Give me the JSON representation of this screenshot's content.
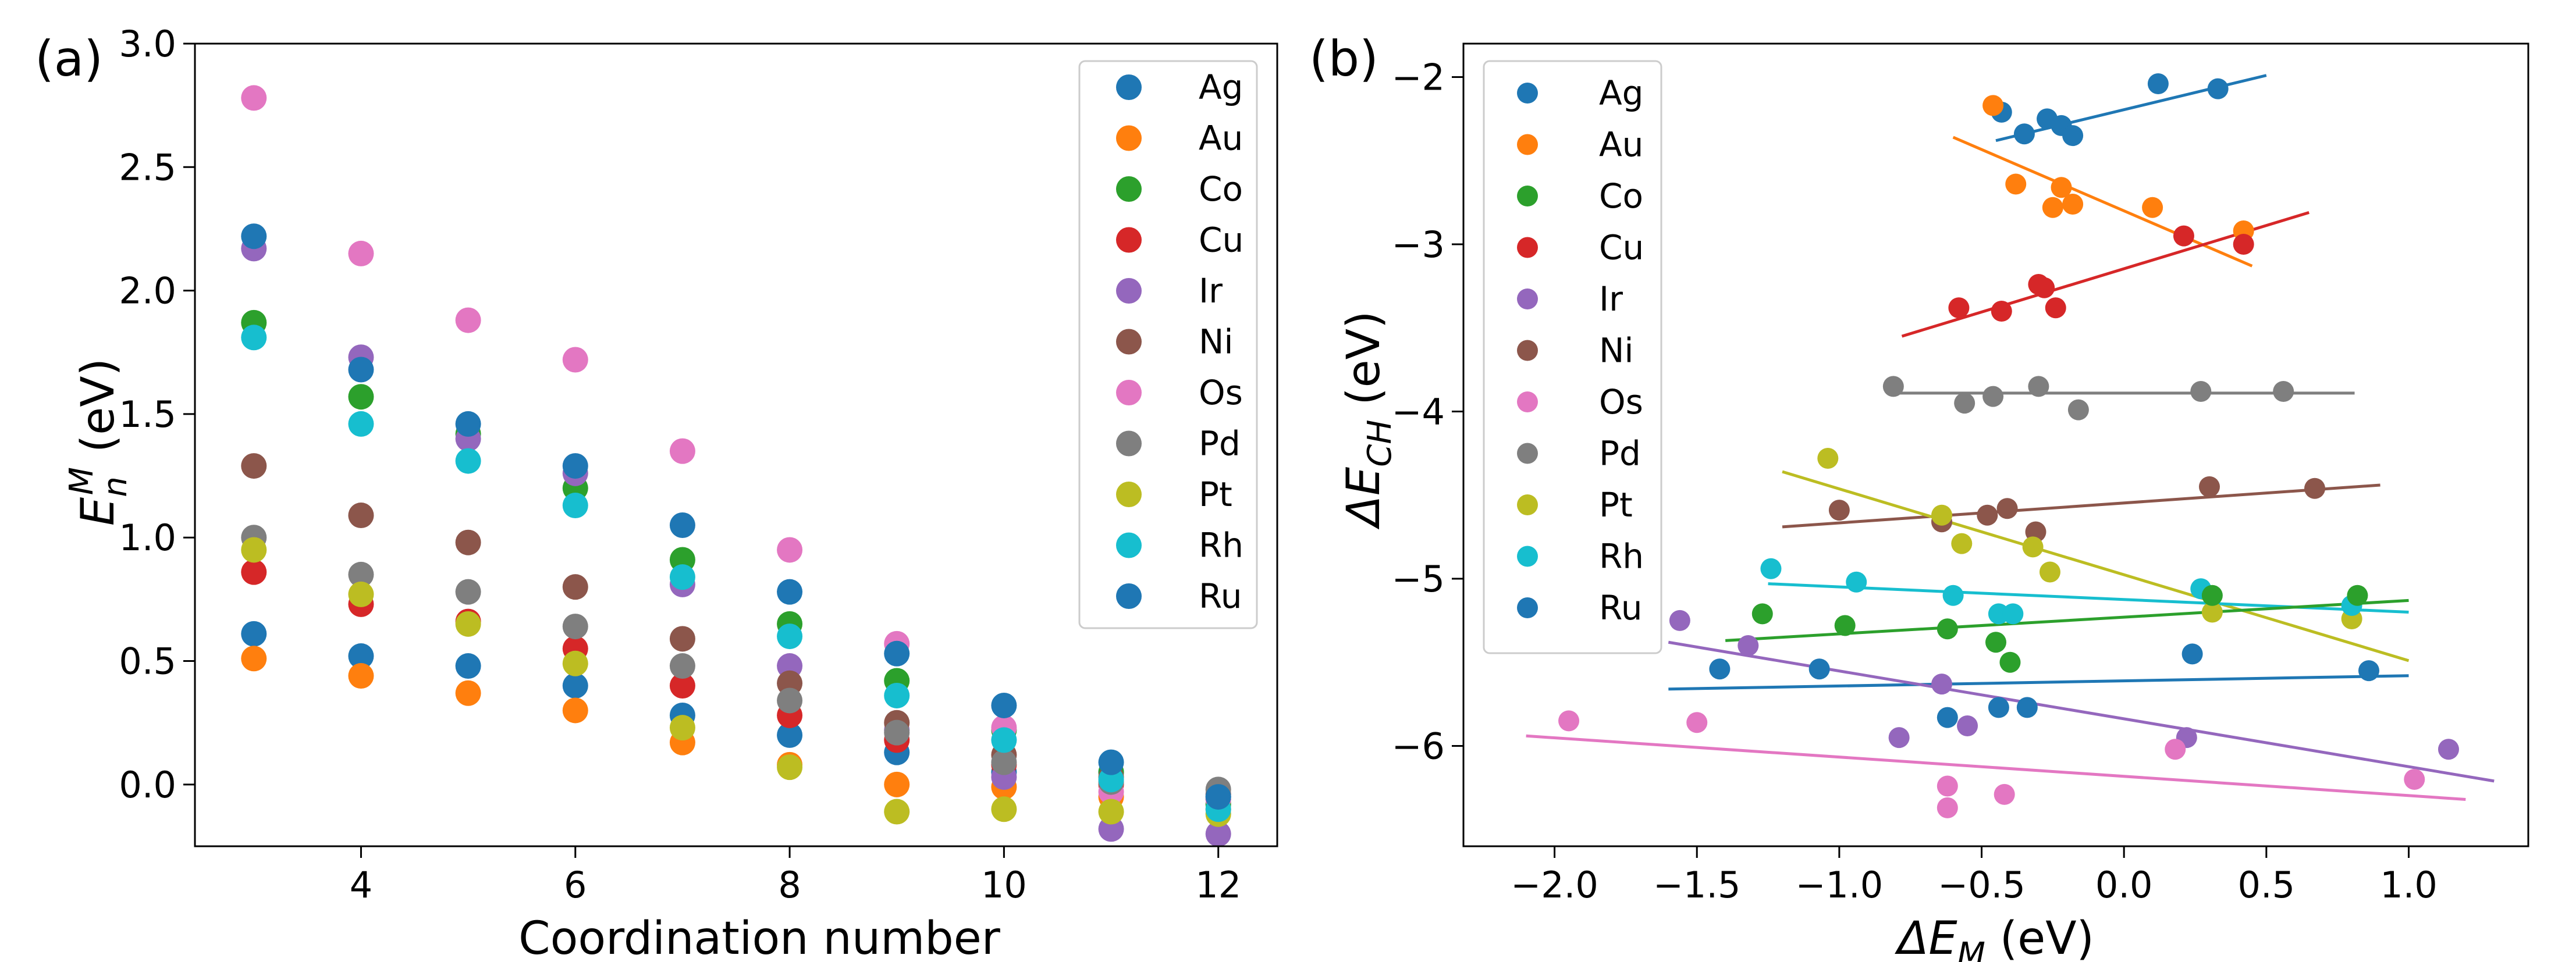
{
  "figure": {
    "colors": {
      "Ag": "#1f77b4",
      "Au": "#ff7f0e",
      "Co": "#2ca02c",
      "Cu": "#d62728",
      "Ir": "#9467bd",
      "Ni": "#8c564b",
      "Os": "#e377c2",
      "Pd": "#7f7f7f",
      "Pt": "#bcbd22",
      "Rh": "#17becf",
      "Ru": "#1f77b4"
    }
  },
  "chart_data": [
    {
      "type": "scatter",
      "panel_label": "(a)",
      "xlabel": "Coordination number",
      "ylabel_main": "E",
      "ylabel_sub": "n",
      "ylabel_sup": "M",
      "ylabel_unit": " (eV)",
      "xlim": [
        2.45,
        12.55
      ],
      "ylim": [
        -0.25,
        3.0
      ],
      "xticks": [
        4,
        6,
        8,
        10,
        12
      ],
      "xtick_labels": [
        "4",
        "6",
        "8",
        "10",
        "12"
      ],
      "yticks": [
        0.0,
        0.5,
        1.0,
        1.5,
        2.0,
        2.5,
        3.0
      ],
      "ytick_labels": [
        "0.0",
        "0.5",
        "1.0",
        "1.5",
        "2.0",
        "2.5",
        "3.0"
      ],
      "legend_position": "top-right",
      "series": [
        {
          "name": "Ag",
          "x": [
            3,
            4,
            5,
            6,
            7,
            8,
            9,
            10,
            11,
            12
          ],
          "y": [
            0.61,
            0.52,
            0.48,
            0.4,
            0.28,
            0.2,
            0.13,
            0.05,
            0.05,
            -0.05
          ]
        },
        {
          "name": "Au",
          "x": [
            3,
            4,
            5,
            6,
            7,
            8,
            9,
            10,
            11,
            12
          ],
          "y": [
            0.51,
            0.44,
            0.37,
            0.3,
            0.17,
            0.08,
            0.0,
            -0.01,
            -0.05,
            -0.1
          ]
        },
        {
          "name": "Co",
          "x": [
            3,
            4,
            5,
            6,
            7,
            8,
            9,
            10,
            11,
            12
          ],
          "y": [
            1.87,
            1.57,
            1.42,
            1.2,
            0.91,
            0.65,
            0.42,
            0.22,
            0.05,
            -0.08
          ]
        },
        {
          "name": "Cu",
          "x": [
            3,
            4,
            5,
            6,
            7,
            8,
            9,
            10,
            11,
            12
          ],
          "y": [
            0.86,
            0.73,
            0.66,
            0.55,
            0.4,
            0.28,
            0.18,
            0.08,
            0.0,
            -0.06
          ]
        },
        {
          "name": "Ir",
          "x": [
            3,
            4,
            5,
            6,
            7,
            8,
            9,
            10,
            11,
            12
          ],
          "y": [
            2.17,
            1.73,
            1.4,
            1.26,
            0.81,
            0.48,
            0.22,
            0.03,
            -0.18,
            -0.2
          ]
        },
        {
          "name": "Ni",
          "x": [
            3,
            4,
            5,
            6,
            7,
            8,
            9,
            10,
            11,
            12
          ],
          "y": [
            1.29,
            1.09,
            0.98,
            0.8,
            0.59,
            0.41,
            0.25,
            0.12,
            0.03,
            -0.04
          ]
        },
        {
          "name": "Os",
          "x": [
            3,
            4,
            5,
            6,
            7,
            8,
            9,
            10,
            11,
            12
          ],
          "y": [
            2.78,
            2.15,
            1.88,
            1.72,
            1.35,
            0.95,
            0.57,
            0.23,
            -0.03,
            -0.06
          ]
        },
        {
          "name": "Pd",
          "x": [
            3,
            4,
            5,
            6,
            7,
            8,
            9,
            10,
            11,
            12
          ],
          "y": [
            1.0,
            0.85,
            0.78,
            0.64,
            0.48,
            0.34,
            0.21,
            0.09,
            0.01,
            -0.02
          ]
        },
        {
          "name": "Pt",
          "x": [
            3,
            4,
            5,
            6,
            7,
            8,
            9,
            10,
            11,
            12
          ],
          "y": [
            0.95,
            0.77,
            0.65,
            0.49,
            0.23,
            0.07,
            -0.11,
            -0.1,
            -0.11,
            -0.12
          ]
        },
        {
          "name": "Rh",
          "x": [
            3,
            4,
            5,
            6,
            7,
            8,
            9,
            10,
            11,
            12
          ],
          "y": [
            1.81,
            1.46,
            1.31,
            1.13,
            0.84,
            0.6,
            0.36,
            0.18,
            0.02,
            -0.1
          ]
        },
        {
          "name": "Ru",
          "x": [
            3,
            4,
            5,
            6,
            7,
            8,
            9,
            10,
            11,
            12
          ],
          "y": [
            2.22,
            1.68,
            1.46,
            1.29,
            1.05,
            0.78,
            0.53,
            0.32,
            0.09,
            -0.05
          ]
        }
      ]
    },
    {
      "type": "scatter",
      "panel_label": "(b)",
      "xlabel_main": "ΔE",
      "xlabel_sub": "M",
      "xlabel_unit": " (eV)",
      "ylabel_main": "ΔE",
      "ylabel_sub": "CH",
      "ylabel_unit": " (eV)",
      "xlim": [
        -2.32,
        1.42
      ],
      "ylim": [
        -6.6,
        -1.8
      ],
      "xticks": [
        -2.0,
        -1.5,
        -1.0,
        -0.5,
        0.0,
        0.5,
        1.0
      ],
      "xtick_labels": [
        "−2.0",
        "−1.5",
        "−1.0",
        "−0.5",
        "0.0",
        "0.5",
        "1.0"
      ],
      "yticks": [
        -6,
        -5,
        -4,
        -3,
        -2
      ],
      "ytick_labels": [
        "−6",
        "−5",
        "−4",
        "−3",
        "−2"
      ],
      "legend_position": "top-left",
      "series": [
        {
          "name": "Ag",
          "x": [
            -0.43,
            -0.35,
            -0.27,
            -0.22,
            -0.18,
            0.12,
            0.33
          ],
          "y": [
            -2.21,
            -2.34,
            -2.25,
            -2.29,
            -2.35,
            -2.04,
            -2.07
          ],
          "fit": {
            "x": [
              -0.45,
              0.5
            ],
            "y": [
              -2.38,
              -1.99
            ]
          }
        },
        {
          "name": "Au",
          "x": [
            -0.46,
            -0.38,
            -0.22,
            -0.25,
            -0.18,
            0.1,
            0.42
          ],
          "y": [
            -2.17,
            -2.64,
            -2.66,
            -2.78,
            -2.76,
            -2.78,
            -2.92
          ],
          "fit": {
            "x": [
              -0.6,
              0.45
            ],
            "y": [
              -2.36,
              -3.13
            ]
          }
        },
        {
          "name": "Cu",
          "x": [
            -0.58,
            -0.43,
            -0.3,
            -0.28,
            -0.24,
            0.21,
            0.42
          ],
          "y": [
            -3.38,
            -3.4,
            -3.24,
            -3.26,
            -3.38,
            -2.95,
            -3.0
          ],
          "fit": {
            "x": [
              -0.78,
              0.65
            ],
            "y": [
              -3.55,
              -2.81
            ]
          }
        },
        {
          "name": "Pd",
          "x": [
            -0.81,
            -0.56,
            -0.46,
            -0.3,
            -0.16,
            0.27,
            0.56
          ],
          "y": [
            -3.85,
            -3.95,
            -3.91,
            -3.85,
            -3.99,
            -3.88,
            -3.88
          ],
          "fit": {
            "x": [
              -0.83,
              0.81
            ],
            "y": [
              -3.89,
              -3.89
            ]
          }
        },
        {
          "name": "Ni",
          "x": [
            -1.0,
            -0.64,
            -0.48,
            -0.41,
            -0.31,
            0.3,
            0.67
          ],
          "y": [
            -4.59,
            -4.66,
            -4.62,
            -4.58,
            -4.72,
            -4.45,
            -4.46
          ],
          "fit": {
            "x": [
              -1.2,
              0.9
            ],
            "y": [
              -4.69,
              -4.44
            ]
          }
        },
        {
          "name": "Pt",
          "x": [
            -1.04,
            -0.64,
            -0.57,
            -0.32,
            -0.26,
            0.31,
            0.8
          ],
          "y": [
            -4.28,
            -4.62,
            -4.79,
            -4.81,
            -4.96,
            -5.2,
            -5.24
          ],
          "fit": {
            "x": [
              -1.2,
              1.0
            ],
            "y": [
              -4.36,
              -5.49
            ]
          }
        },
        {
          "name": "Rh",
          "x": [
            -1.24,
            -0.94,
            -0.6,
            -0.44,
            -0.39,
            0.27,
            0.8
          ],
          "y": [
            -4.94,
            -5.02,
            -5.1,
            -5.21,
            -5.21,
            -5.06,
            -5.16
          ],
          "fit": {
            "x": [
              -1.25,
              1.0
            ],
            "y": [
              -5.03,
              -5.2
            ]
          }
        },
        {
          "name": "Co",
          "x": [
            -1.27,
            -0.98,
            -0.62,
            -0.45,
            -0.4,
            0.31,
            0.82
          ],
          "y": [
            -5.21,
            -5.28,
            -5.3,
            -5.38,
            -5.5,
            -5.1,
            -5.1
          ],
          "fit": {
            "x": [
              -1.4,
              1.0
            ],
            "y": [
              -5.37,
              -5.13
            ]
          }
        },
        {
          "name": "Ru",
          "x": [
            -1.42,
            -1.07,
            -0.62,
            -0.44,
            -0.34,
            0.24,
            0.86
          ],
          "y": [
            -5.54,
            -5.54,
            -5.83,
            -5.77,
            -5.77,
            -5.45,
            -5.55
          ],
          "fit": {
            "x": [
              -1.6,
              1.0
            ],
            "y": [
              -5.66,
              -5.58
            ]
          }
        },
        {
          "name": "Ir",
          "x": [
            -1.56,
            -1.32,
            -0.79,
            -0.64,
            -0.55,
            0.22,
            1.14
          ],
          "y": [
            -5.25,
            -5.4,
            -5.95,
            -5.63,
            -5.88,
            -5.95,
            -6.02
          ],
          "fit": {
            "x": [
              -1.6,
              1.3
            ],
            "y": [
              -5.38,
              -6.21
            ]
          }
        },
        {
          "name": "Os",
          "x": [
            -1.95,
            -1.5,
            -0.62,
            -0.62,
            -0.42,
            0.18,
            1.02
          ],
          "y": [
            -5.85,
            -5.86,
            -6.24,
            -6.37,
            -6.29,
            -6.02,
            -6.2
          ],
          "fit": {
            "x": [
              -2.1,
              1.2
            ],
            "y": [
              -5.94,
              -6.32
            ]
          }
        }
      ]
    }
  ]
}
